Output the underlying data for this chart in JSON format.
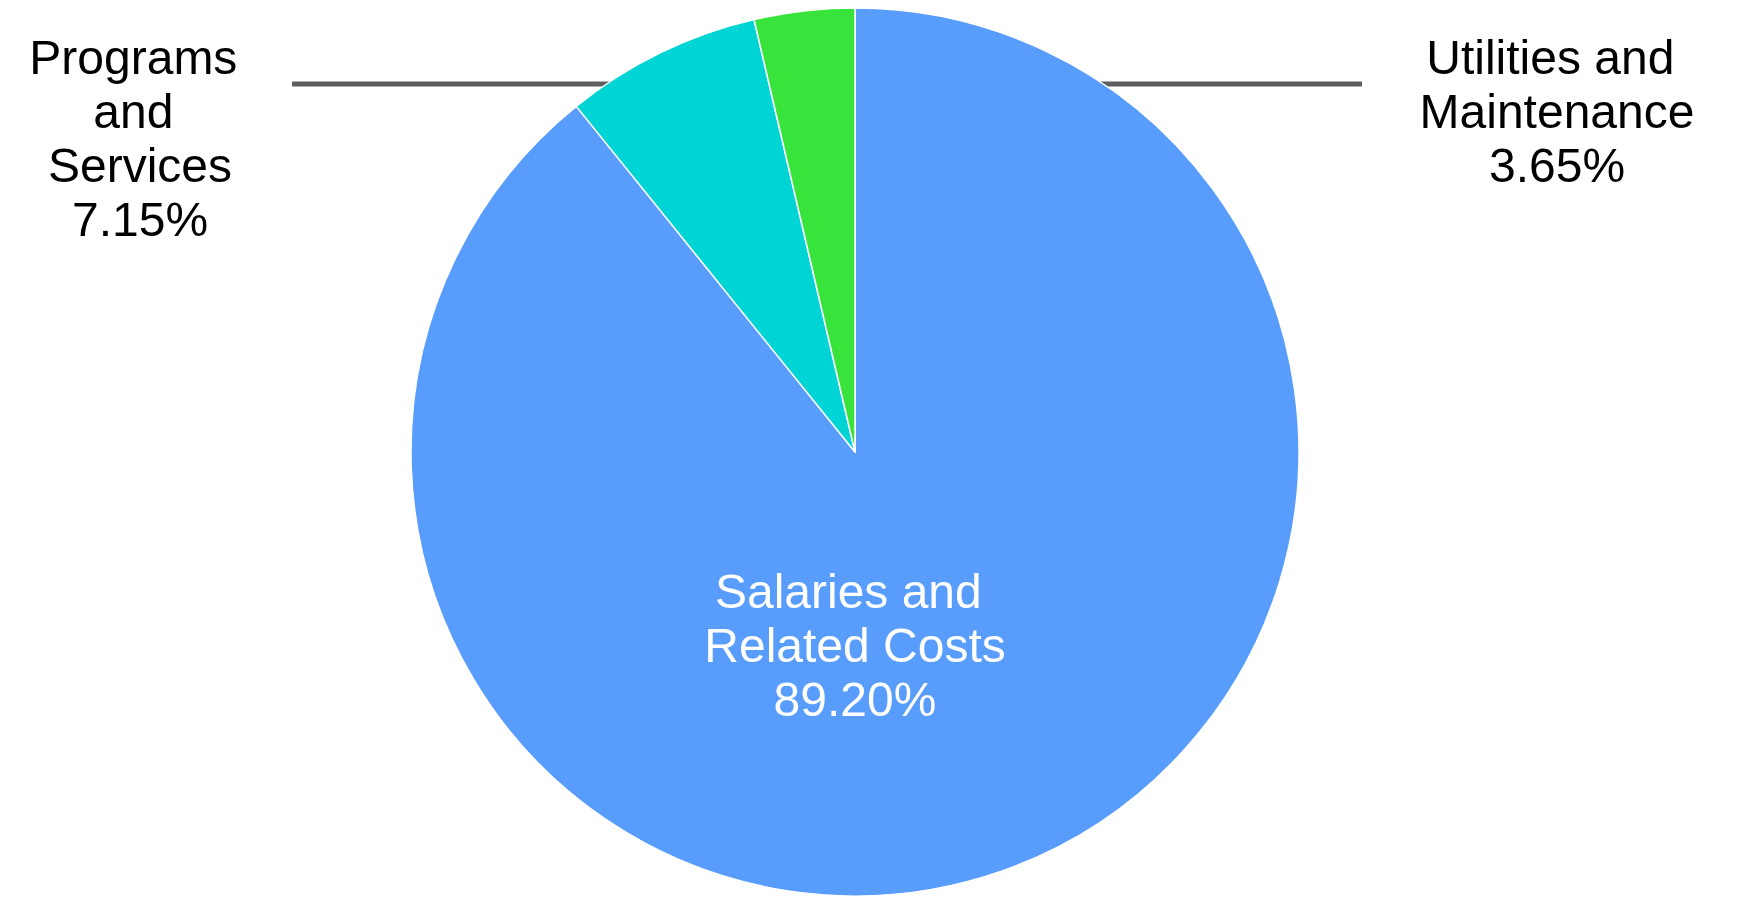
{
  "chart_data": {
    "type": "pie",
    "categories": [
      "Salaries and Related Costs",
      "Programs and Services",
      "Utilities and Maintenance"
    ],
    "values": [
      89.2,
      7.15,
      3.65
    ],
    "value_labels": [
      "89.20%",
      "7.15%",
      "3.65%"
    ],
    "colors": [
      "#589cfc",
      "#00d4d4",
      "#38e33c"
    ],
    "legend": false
  }
}
